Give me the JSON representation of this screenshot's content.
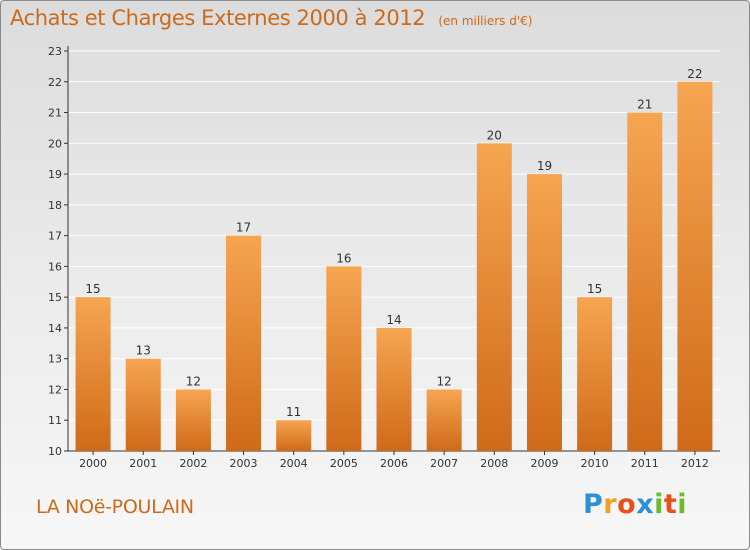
{
  "header": {
    "title": "Achats et Charges Externes 2000 à 2012",
    "subtitle": "(en milliers d'€)"
  },
  "footer": {
    "commune": "LA NOë-POULAIN",
    "logo_letters": [
      "P",
      "r",
      "o",
      "x",
      "i",
      "t",
      "i"
    ],
    "logo_colors": [
      "#2d8fd5",
      "#f0a020",
      "#e94e1b",
      "#2d8fd5",
      "#6bbd2f",
      "#e94e1b",
      "#6bbd2f"
    ]
  },
  "colors": {
    "bar_top": "#f6a550",
    "bar_bottom": "#cf6a1a",
    "axis": "#333333",
    "grid": "#ffffff",
    "accent": "#cc6a1a"
  },
  "chart_data": {
    "type": "bar",
    "categories": [
      "2000",
      "2001",
      "2002",
      "2003",
      "2004",
      "2005",
      "2006",
      "2007",
      "2008",
      "2009",
      "2010",
      "2011",
      "2012"
    ],
    "values": [
      15,
      13,
      12,
      17,
      11,
      16,
      14,
      12,
      20,
      19,
      15,
      21,
      22
    ],
    "ylim": [
      10,
      23
    ],
    "yticks": [
      10,
      11,
      12,
      13,
      14,
      15,
      16,
      17,
      18,
      19,
      20,
      21,
      22,
      23
    ],
    "grid": true,
    "data_labels": true
  }
}
